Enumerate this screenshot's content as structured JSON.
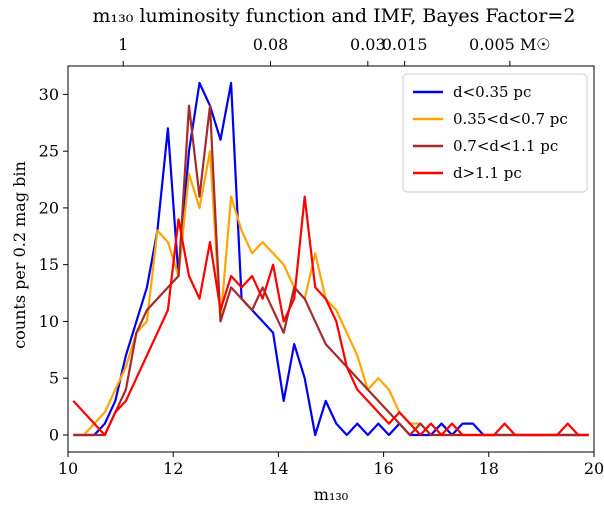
{
  "chart_data": {
    "type": "line",
    "title": "m₁₃₀ luminosity function and IMF, Bayes Factor=2",
    "xlabel": "m₁₃₀",
    "ylabel": "counts per 0.2 mag bin",
    "xlim": [
      10,
      20
    ],
    "ylim": [
      -1.5,
      32.5
    ],
    "xticks": [
      10,
      12,
      14,
      16,
      18,
      20
    ],
    "yticks": [
      0,
      5,
      10,
      15,
      20,
      25,
      30
    ],
    "top_axis_ticks": [
      {
        "m": 11.05,
        "label": "1"
      },
      {
        "m": 13.85,
        "label": "0.08"
      },
      {
        "m": 15.7,
        "label": "0.03"
      },
      {
        "m": 16.4,
        "label": "0.015"
      },
      {
        "m": 18.4,
        "label": "0.005 M☉"
      }
    ],
    "grid": false,
    "legend_position": "top-right",
    "x": [
      10.1,
      10.3,
      10.5,
      10.7,
      10.9,
      11.1,
      11.3,
      11.5,
      11.7,
      11.9,
      12.1,
      12.3,
      12.5,
      12.7,
      12.9,
      13.1,
      13.3,
      13.5,
      13.7,
      13.9,
      14.1,
      14.3,
      14.5,
      14.7,
      14.9,
      15.1,
      15.3,
      15.5,
      15.7,
      15.9,
      16.1,
      16.3,
      16.5,
      16.7,
      16.9,
      17.1,
      17.3,
      17.5,
      17.7,
      17.9,
      18.1,
      18.3,
      18.5,
      18.7,
      18.9,
      19.1,
      19.3,
      19.5,
      19.7,
      19.9
    ],
    "series": [
      {
        "name": "d<0.35 pc",
        "color": "#0000ee",
        "values": [
          0,
          0,
          0,
          1,
          3,
          7,
          10,
          13,
          18,
          27,
          14,
          25,
          31,
          29,
          26,
          31,
          12,
          11,
          10,
          9,
          3,
          8,
          5,
          0,
          3,
          1,
          0,
          1,
          0,
          1,
          0,
          1,
          0,
          0,
          0,
          1,
          0,
          1,
          1,
          0,
          0,
          0,
          0,
          0,
          0,
          0,
          0,
          0,
          0,
          0
        ]
      },
      {
        "name": "0.35<d<0.7 pc",
        "color": "#ffa500",
        "values": [
          0,
          0,
          1,
          2,
          4,
          6,
          9,
          10,
          18,
          17,
          14,
          23,
          20,
          25,
          10,
          21,
          18,
          16,
          17,
          16,
          15,
          13,
          12,
          16,
          12,
          11,
          9,
          7,
          4,
          5,
          4,
          2,
          1,
          1,
          0,
          0,
          0,
          0,
          0,
          0,
          0,
          0,
          0,
          0,
          0,
          0,
          0,
          0,
          0,
          0
        ]
      },
      {
        "name": "0.7<d<1.1 pc",
        "color": "#a52a2a",
        "values": [
          0,
          0,
          0,
          0,
          2,
          4,
          9,
          11,
          12,
          13,
          14,
          29,
          21,
          29,
          10,
          13,
          12,
          11,
          13,
          11,
          9,
          13,
          12,
          10,
          8,
          7,
          6,
          5,
          4,
          3,
          2,
          1,
          0,
          1,
          0,
          0,
          0,
          0,
          0,
          0,
          0,
          0,
          0,
          0,
          0,
          0,
          0,
          0,
          0,
          0
        ]
      },
      {
        "name": "d>1.1 pc",
        "color": "#ff0000",
        "values": [
          3,
          2,
          1,
          0,
          2,
          3,
          5,
          7,
          9,
          11,
          19,
          14,
          12,
          17,
          11,
          14,
          13,
          14,
          12,
          15,
          10,
          12,
          21,
          13,
          12,
          10,
          6,
          4,
          3,
          2,
          1,
          2,
          1,
          0,
          1,
          0,
          1,
          0,
          0,
          0,
          0,
          1,
          0,
          0,
          0,
          0,
          0,
          1,
          0,
          0
        ]
      }
    ]
  }
}
